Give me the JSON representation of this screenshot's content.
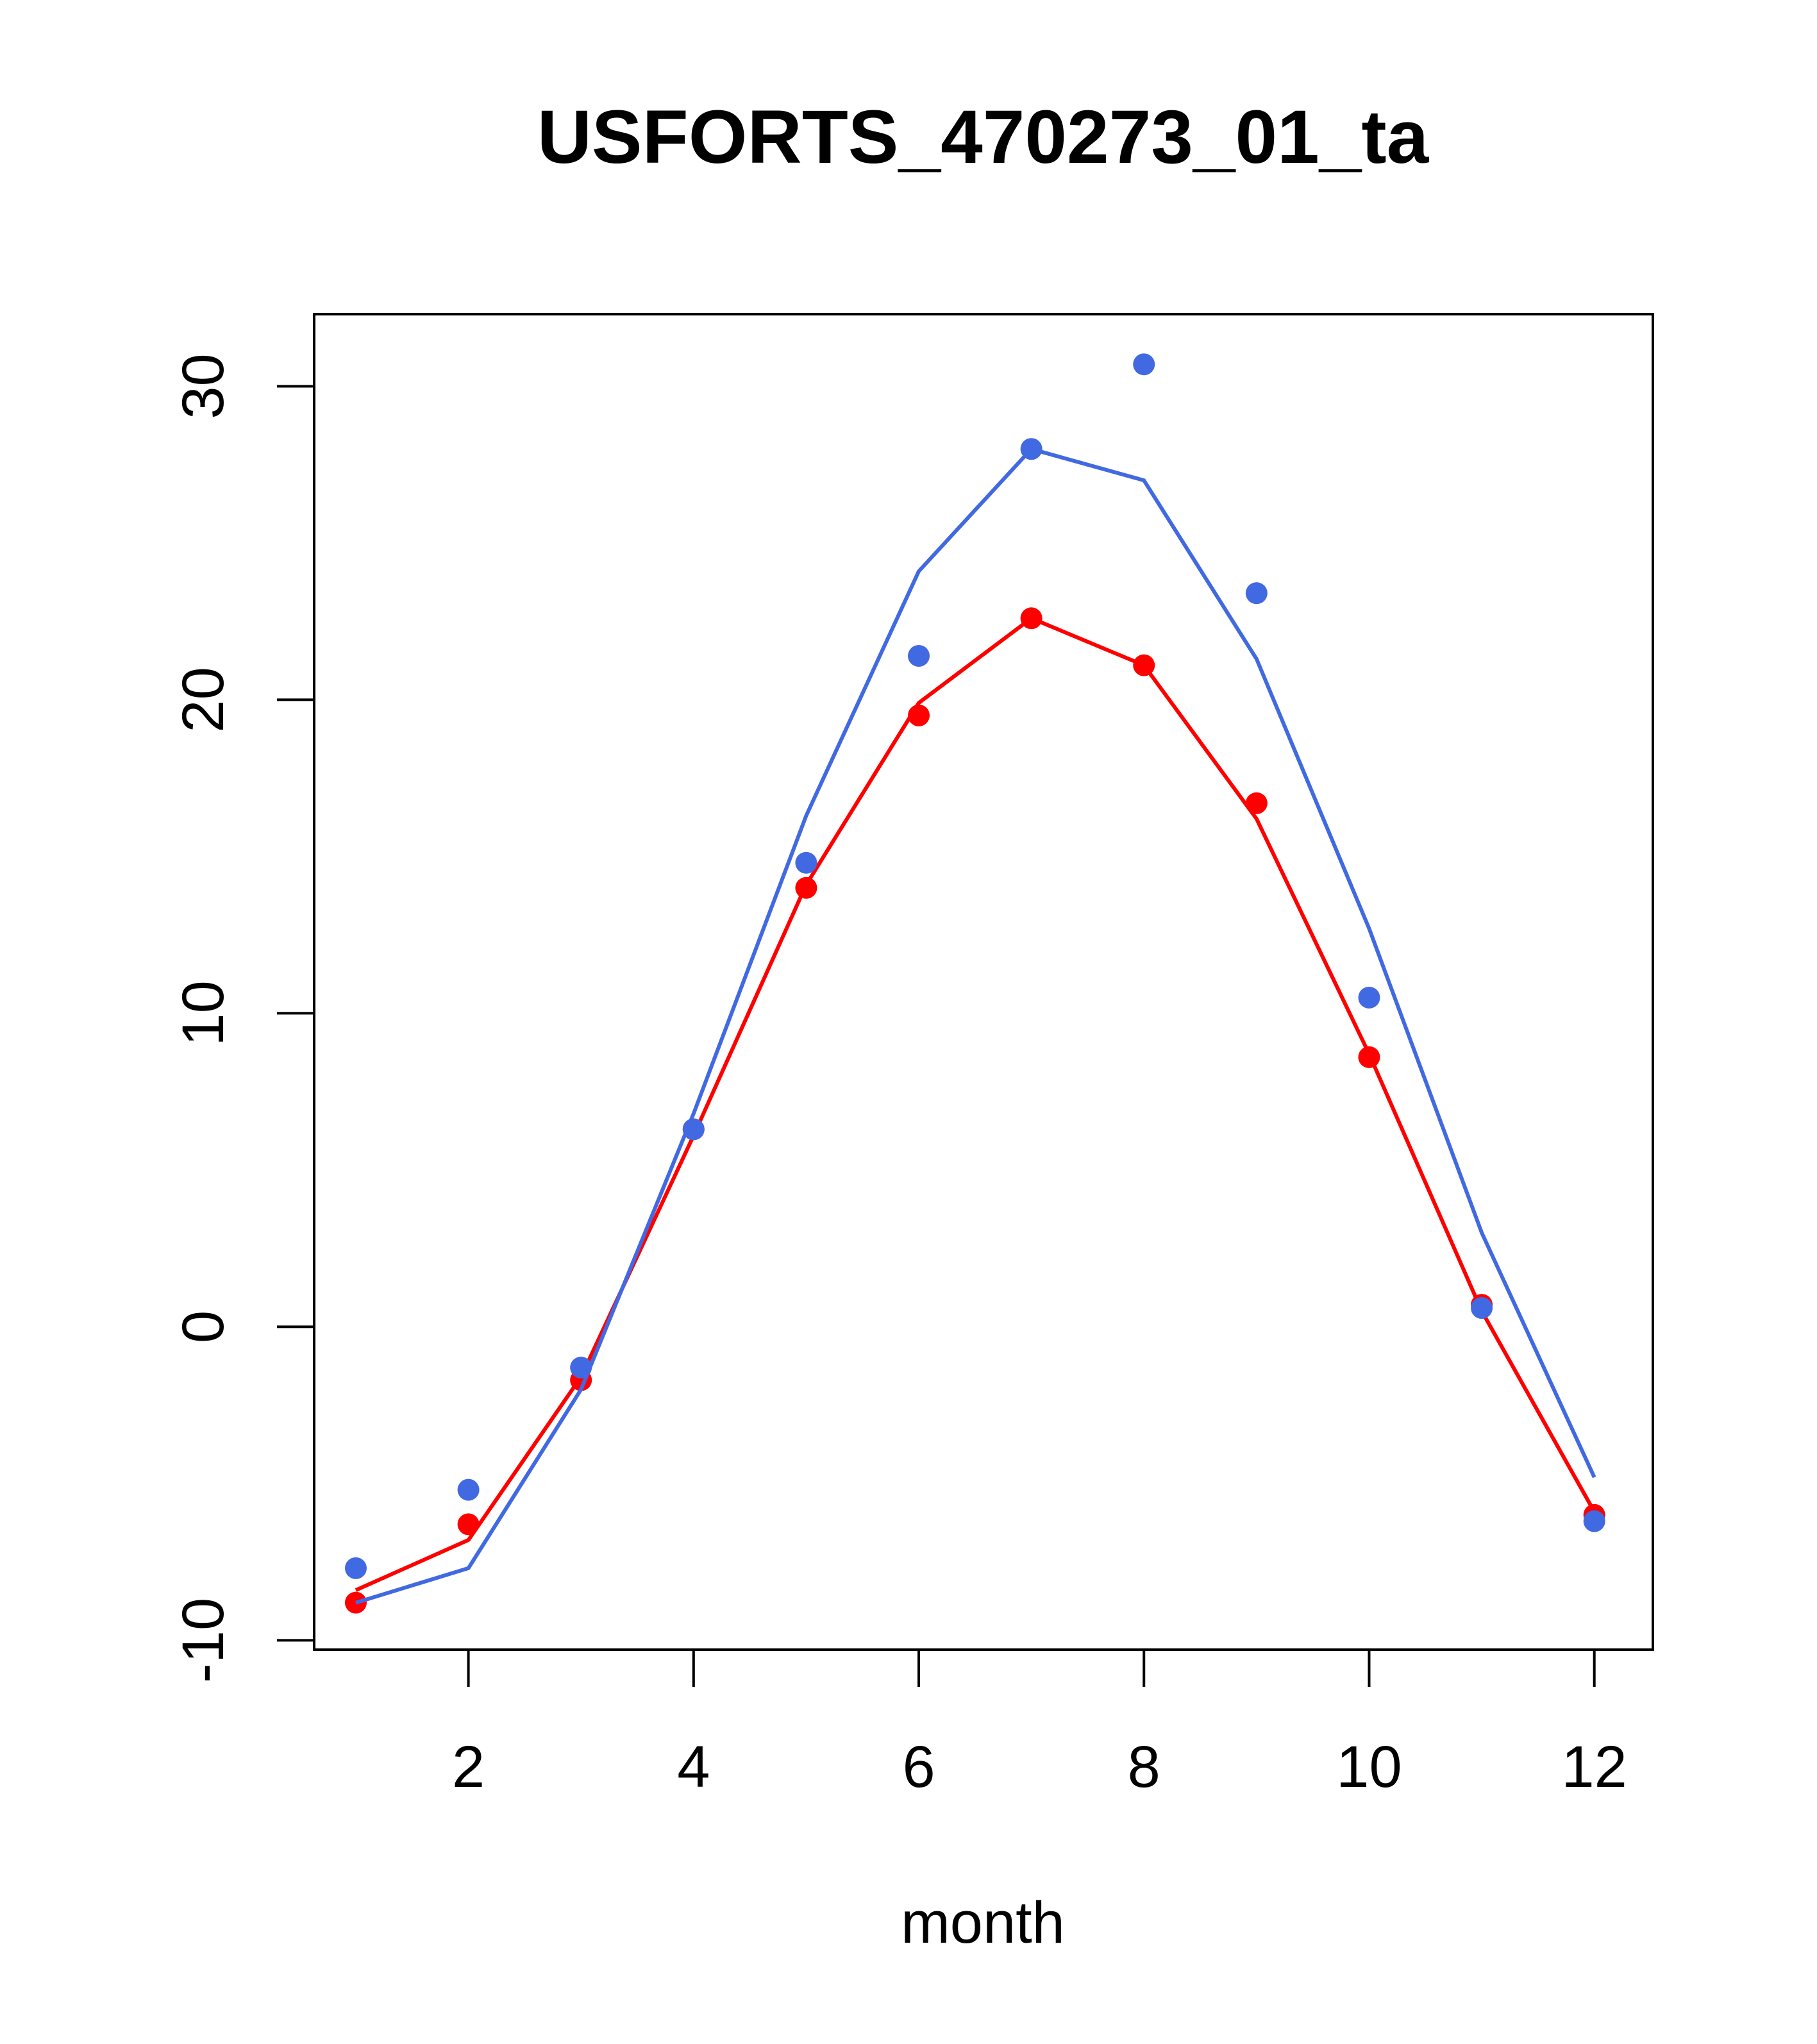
{
  "chart_data": {
    "type": "line",
    "title": "USFORTS_470273_01_ta",
    "xlabel": "month",
    "ylabel": "",
    "xlim": [
      0.63,
      12.52
    ],
    "ylim": [
      -10.3,
      32.3
    ],
    "x_ticks": [
      2,
      4,
      6,
      8,
      10,
      12
    ],
    "x_tick_labels": [
      "2",
      "4",
      "6",
      "8",
      "10",
      "12"
    ],
    "y_ticks": [
      -10,
      0,
      10,
      20,
      30
    ],
    "y_tick_labels": [
      "-10",
      "0",
      "10",
      "20",
      "30"
    ],
    "grid": false,
    "legend": "none",
    "x": [
      1,
      2,
      3,
      4,
      5,
      6,
      7,
      8,
      9,
      10,
      11,
      12
    ],
    "series": [
      {
        "color": "#ff0000",
        "line": [
          -8.4,
          -6.8,
          -1.6,
          6.1,
          14.1,
          19.9,
          22.6,
          21.1,
          16.2,
          8.7,
          0.5,
          -5.9
        ],
        "points": [
          -8.8,
          -6.3,
          -1.7,
          6.3,
          14.0,
          19.5,
          22.6,
          21.1,
          16.7,
          8.6,
          0.7,
          -6.0
        ]
      },
      {
        "color": "#4169e1",
        "line": [
          -8.8,
          -7.7,
          -2.0,
          6.8,
          16.3,
          24.1,
          28.0,
          27.0,
          21.3,
          12.7,
          3.0,
          -4.8
        ],
        "points": [
          -7.7,
          -5.2,
          -1.3,
          6.3,
          14.8,
          21.4,
          28.0,
          30.7,
          23.4,
          10.5,
          0.6,
          -6.2
        ]
      }
    ]
  }
}
